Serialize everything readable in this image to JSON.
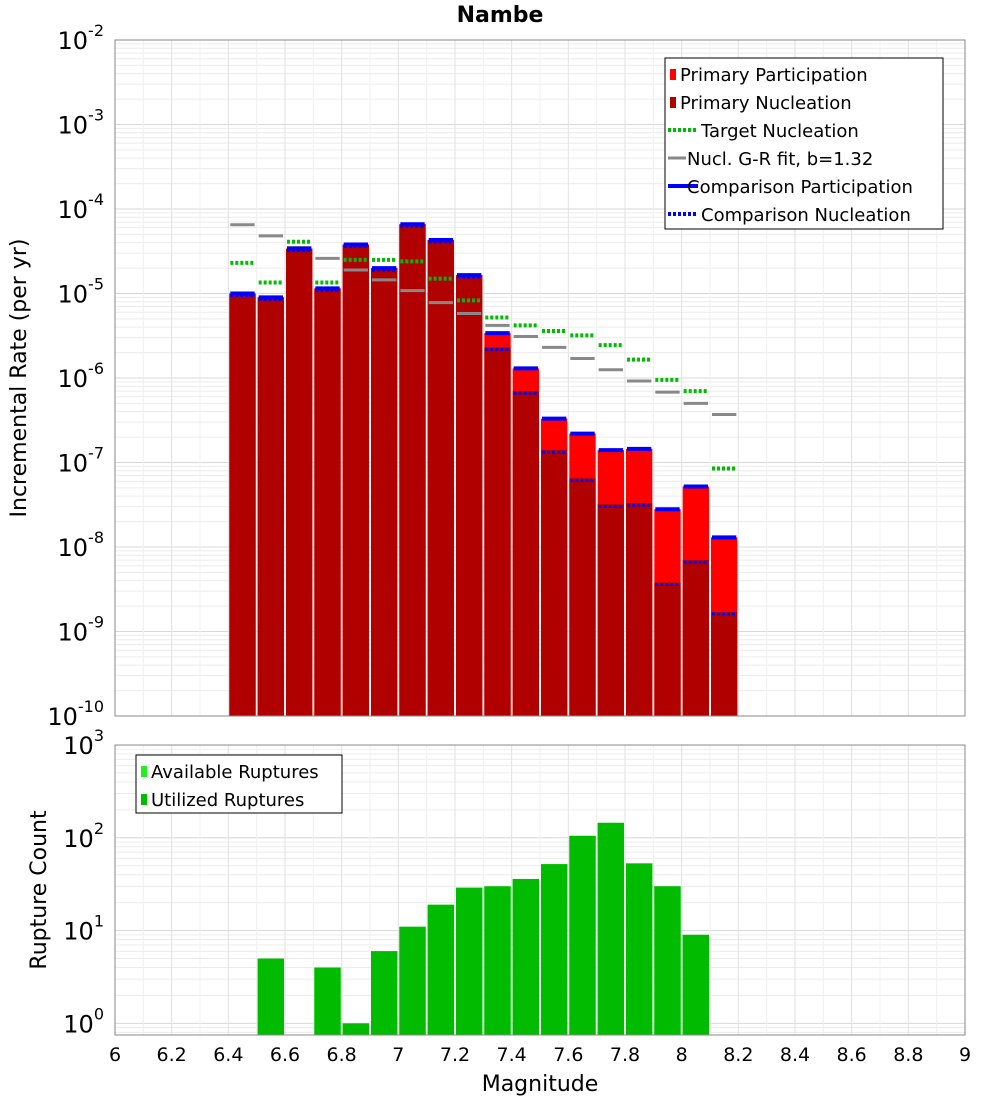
{
  "chart_data": [
    {
      "type": "bar",
      "title": "Nambe",
      "ylabel": "Incremental Rate (per yr)",
      "xlabel": "",
      "xlim": [
        6,
        9
      ],
      "ylim": [
        1e-10,
        0.01
      ],
      "yscale": "log",
      "grid": true,
      "legend_position": "top-right",
      "x": [
        6.45,
        6.55,
        6.65,
        6.75,
        6.85,
        6.95,
        7.05,
        7.15,
        7.25,
        7.35,
        7.45,
        7.55,
        7.65,
        7.75,
        7.85,
        7.95,
        8.05,
        8.15
      ],
      "series": [
        {
          "name": "Primary Participation",
          "style": "bar",
          "color": "#ff0000",
          "values": [
            1e-05,
            9e-06,
            3.4e-05,
            1.15e-05,
            3.8e-05,
            2e-05,
            6.6e-05,
            4.3e-05,
            1.65e-05,
            3.4e-06,
            1.3e-06,
            3.3e-07,
            2.2e-07,
            1.4e-07,
            1.45e-07,
            2.8e-08,
            5.2e-08,
            1.3e-08
          ]
        },
        {
          "name": "Primary Nucleation",
          "style": "bar",
          "color": "#b00000",
          "values": [
            1e-05,
            9e-06,
            3.4e-05,
            1.15e-05,
            3.8e-05,
            2e-05,
            6.6e-05,
            4.3e-05,
            1.65e-05,
            2.3e-06,
            7e-07,
            1.4e-07,
            6.5e-08,
            3.2e-08,
            3.3e-08,
            3.8e-09,
            7e-09,
            1.7e-09
          ]
        },
        {
          "name": "Target Nucleation",
          "style": "dotted",
          "color": "#00bb00",
          "values": [
            2.3e-05,
            1.35e-05,
            4.1e-05,
            1.35e-05,
            2.5e-05,
            2.5e-05,
            2.4e-05,
            1.5e-05,
            8.3e-06,
            5.2e-06,
            4.2e-06,
            3.6e-06,
            3.2e-06,
            2.45e-06,
            1.65e-06,
            9.5e-07,
            7e-07,
            8.5e-08
          ]
        },
        {
          "name": "Nucl. G-R fit, b=1.32",
          "style": "solid",
          "color": "#888888",
          "values": [
            6.5e-05,
            4.8e-05,
            3.5e-05,
            2.6e-05,
            1.9e-05,
            1.45e-05,
            1.08e-05,
            7.8e-06,
            5.8e-06,
            4.2e-06,
            3.1e-06,
            2.3e-06,
            1.7e-06,
            1.25e-06,
            9.2e-07,
            6.8e-07,
            5e-07,
            3.7e-07
          ]
        },
        {
          "name": "Comparison Participation",
          "style": "solid",
          "color": "#0000ff",
          "values": [
            1e-05,
            9e-06,
            3.4e-05,
            1.15e-05,
            3.8e-05,
            2e-05,
            6.6e-05,
            4.3e-05,
            1.65e-05,
            3.4e-06,
            1.3e-06,
            3.3e-07,
            2.2e-07,
            1.4e-07,
            1.45e-07,
            2.8e-08,
            5.2e-08,
            1.3e-08
          ]
        },
        {
          "name": "Comparison Nucleation",
          "style": "dotted",
          "color": "#0000ff",
          "values": [
            1e-05,
            9e-06,
            3.4e-05,
            1.15e-05,
            3.8e-05,
            2e-05,
            6.6e-05,
            4.3e-05,
            1.65e-05,
            2.3e-06,
            7e-07,
            1.4e-07,
            6.5e-08,
            3.2e-08,
            3.3e-08,
            3.8e-09,
            7e-09,
            1.7e-09
          ]
        }
      ],
      "yticks": [
        {
          "base": "10",
          "exp": "-2"
        },
        {
          "base": "10",
          "exp": "-3"
        },
        {
          "base": "10",
          "exp": "-4"
        },
        {
          "base": "10",
          "exp": "-5"
        },
        {
          "base": "10",
          "exp": "-6"
        },
        {
          "base": "10",
          "exp": "-7"
        },
        {
          "base": "10",
          "exp": "-8"
        },
        {
          "base": "10",
          "exp": "-9"
        },
        {
          "base": "10",
          "exp": "-10"
        }
      ]
    },
    {
      "type": "bar",
      "title": "",
      "xlabel": "Magnitude",
      "ylabel": "Rupture Count",
      "xlim": [
        6,
        9
      ],
      "ylim": [
        0.75,
        1000
      ],
      "yscale": "log",
      "grid": true,
      "legend_position": "top-left",
      "x": [
        6.45,
        6.55,
        6.65,
        6.75,
        6.85,
        6.95,
        7.05,
        7.15,
        7.25,
        7.35,
        7.45,
        7.55,
        7.65,
        7.75,
        7.85,
        7.95,
        8.05,
        8.15
      ],
      "series": [
        {
          "name": "Available Ruptures",
          "style": "bar",
          "color": "#22ee22",
          "values": [
            0,
            5,
            0,
            4,
            1,
            6,
            11,
            19,
            29,
            30,
            36,
            52,
            105,
            145,
            53,
            30,
            9,
            0
          ]
        },
        {
          "name": "Utilized Ruptures",
          "style": "bar",
          "color": "#00bb00",
          "values": [
            0,
            5,
            0,
            4,
            1,
            6,
            11,
            19,
            29,
            30,
            36,
            52,
            105,
            145,
            53,
            30,
            9,
            0
          ]
        }
      ],
      "xticks": [
        "6",
        "6.2",
        "6.4",
        "6.6",
        "6.8",
        "7",
        "7.2",
        "7.4",
        "7.6",
        "7.8",
        "8",
        "8.2",
        "8.4",
        "8.6",
        "8.8",
        "9"
      ],
      "yticks": [
        {
          "base": "10",
          "exp": "3"
        },
        {
          "base": "10",
          "exp": "2"
        },
        {
          "base": "10",
          "exp": "1"
        },
        {
          "base": "10",
          "exp": "0"
        }
      ]
    }
  ]
}
